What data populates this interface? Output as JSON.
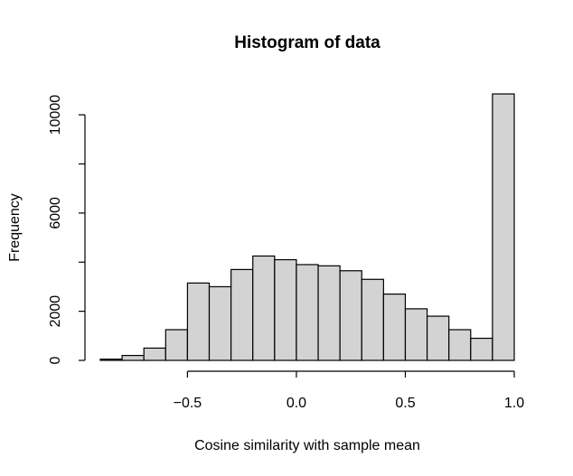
{
  "chart_data": {
    "type": "bar",
    "title": "Histogram of data",
    "xlabel": "Cosine similarity with sample mean",
    "ylabel": "Frequency",
    "bins": [
      {
        "from": -0.9,
        "to": -0.8,
        "value": 50
      },
      {
        "from": -0.8,
        "to": -0.7,
        "value": 200
      },
      {
        "from": -0.7,
        "to": -0.6,
        "value": 500
      },
      {
        "from": -0.6,
        "to": -0.5,
        "value": 1250
      },
      {
        "from": -0.5,
        "to": -0.4,
        "value": 3150
      },
      {
        "from": -0.4,
        "to": -0.3,
        "value": 3000
      },
      {
        "from": -0.3,
        "to": -0.2,
        "value": 3700
      },
      {
        "from": -0.2,
        "to": -0.1,
        "value": 4250
      },
      {
        "from": -0.1,
        "to": 0.0,
        "value": 4100
      },
      {
        "from": 0.0,
        "to": 0.1,
        "value": 3900
      },
      {
        "from": 0.1,
        "to": 0.2,
        "value": 3850
      },
      {
        "from": 0.2,
        "to": 0.3,
        "value": 3650
      },
      {
        "from": 0.3,
        "to": 0.4,
        "value": 3300
      },
      {
        "from": 0.4,
        "to": 0.5,
        "value": 2700
      },
      {
        "from": 0.5,
        "to": 0.6,
        "value": 2100
      },
      {
        "from": 0.6,
        "to": 0.7,
        "value": 1800
      },
      {
        "from": 0.7,
        "to": 0.8,
        "value": 1250
      },
      {
        "from": 0.8,
        "to": 0.9,
        "value": 900
      },
      {
        "from": 0.9,
        "to": 1.0,
        "value": 10850
      }
    ],
    "xlim": [
      -0.9,
      1.0
    ],
    "ylim": [
      0,
      10850
    ],
    "x_ticks": [
      -0.5,
      0.0,
      0.5,
      1.0
    ],
    "x_tick_labels": [
      "−0.5",
      "0.0",
      "0.5",
      "1.0"
    ],
    "y_ticks": [
      0,
      2000,
      4000,
      6000,
      8000,
      10000
    ],
    "y_tick_labels": [
      "0",
      "2000",
      "",
      "6000",
      "",
      "10000"
    ],
    "grid": false,
    "colors": {
      "bar_fill": "#d3d3d3",
      "bar_stroke": "#000000"
    }
  }
}
